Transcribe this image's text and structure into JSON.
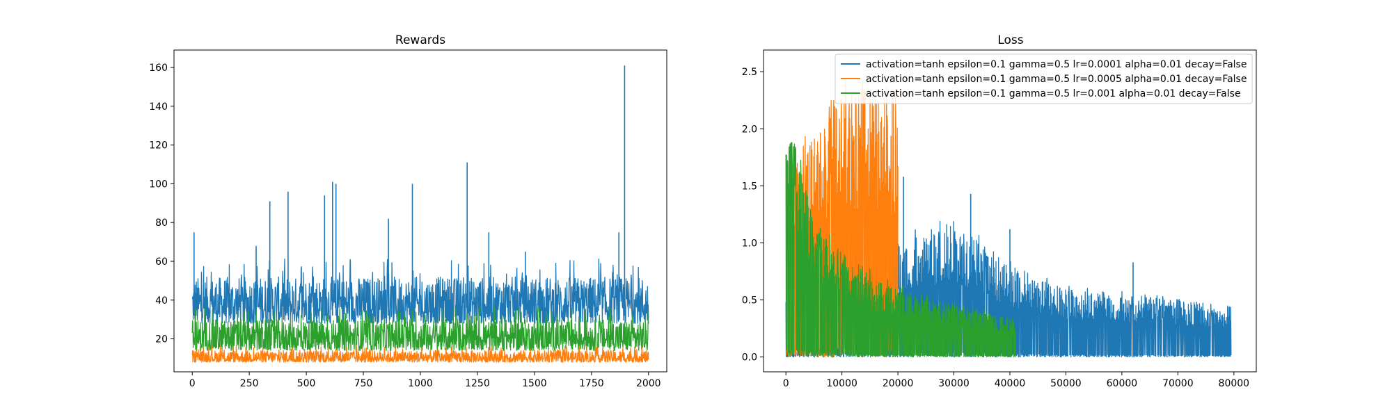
{
  "chart_data": [
    {
      "type": "line",
      "title": "Rewards",
      "xlabel": "",
      "ylabel": "",
      "xlim": [
        -80,
        2080
      ],
      "ylim": [
        3,
        169
      ],
      "xticks": [
        0,
        250,
        500,
        750,
        1000,
        1250,
        1500,
        1750,
        2000
      ],
      "yticks": [
        20,
        40,
        60,
        80,
        100,
        120,
        140,
        160
      ],
      "xtick_labels": [
        "0",
        "250",
        "500",
        "750",
        "1000",
        "1250",
        "1500",
        "1750",
        "2000"
      ],
      "ytick_labels": [
        "20",
        "40",
        "60",
        "80",
        "100",
        "120",
        "140",
        "160"
      ],
      "grid": false,
      "series": [
        {
          "color": "#1f77b4",
          "x_range": [
            0,
            2000
          ],
          "base": [
            28,
            52
          ],
          "spikes": [
            [
              8,
              75
            ],
            [
              280,
              68
            ],
            [
              340,
              91
            ],
            [
              420,
              96
            ],
            [
              580,
              94
            ],
            [
              615,
              101
            ],
            [
              630,
              100
            ],
            [
              860,
              82
            ],
            [
              965,
              100
            ],
            [
              1205,
              111
            ],
            [
              1300,
              75
            ],
            [
              1460,
              65
            ],
            [
              1870,
              75
            ],
            [
              1895,
              161
            ]
          ]
        },
        {
          "color": "#2ca02c",
          "x_range": [
            0,
            2000
          ],
          "base": [
            14,
            30
          ]
        },
        {
          "color": "#ff7f0e",
          "x_range": [
            0,
            2000
          ],
          "base": [
            8,
            14
          ]
        }
      ]
    },
    {
      "type": "line",
      "title": "Loss",
      "xlabel": "",
      "ylabel": "",
      "xlim": [
        -4000,
        84000
      ],
      "ylim": [
        -0.13,
        2.69
      ],
      "xticks": [
        0,
        10000,
        20000,
        30000,
        40000,
        50000,
        60000,
        70000,
        80000
      ],
      "yticks": [
        0.0,
        0.5,
        1.0,
        1.5,
        2.0,
        2.5
      ],
      "xtick_labels": [
        "0",
        "10000",
        "20000",
        "30000",
        "40000",
        "50000",
        "60000",
        "70000",
        "80000"
      ],
      "ytick_labels": [
        "0.0",
        "0.5",
        "1.0",
        "1.5",
        "2.0",
        "2.5"
      ],
      "grid": false,
      "legend_position": "top-right",
      "series": [
        {
          "name": "activation=tanh epsilon=0.1 gamma=0.5 lr=0.0001 alpha=0.01 decay=False",
          "color": "#1f77b4",
          "x_range": [
            0,
            79500
          ],
          "envelope": [
            [
              0,
              0.5
            ],
            [
              20000,
              1.0
            ],
            [
              30000,
              1.2
            ],
            [
              40000,
              0.8
            ],
            [
              50000,
              0.6
            ],
            [
              60000,
              0.55
            ],
            [
              70000,
              0.5
            ],
            [
              79500,
              0.45
            ]
          ],
          "spikes": [
            [
              21000,
              1.58
            ],
            [
              33000,
              1.43
            ],
            [
              40000,
              1.12
            ],
            [
              62000,
              0.83
            ]
          ]
        },
        {
          "name": "activation=tanh epsilon=0.1 gamma=0.5 lr=0.0005 alpha=0.01 decay=False",
          "color": "#ff7f0e",
          "x_range": [
            0,
            20000
          ],
          "envelope": [
            [
              0,
              1.6
            ],
            [
              5000,
              1.95
            ],
            [
              10000,
              2.3
            ],
            [
              15000,
              2.35
            ],
            [
              20000,
              2.2
            ]
          ]
        },
        {
          "name": "activation=tanh epsilon=0.1 gamma=0.5 lr=0.001 alpha=0.01 decay=False",
          "color": "#2ca02c",
          "x_range": [
            0,
            41000
          ],
          "envelope": [
            [
              0,
              1.9
            ],
            [
              2000,
              1.8
            ],
            [
              5000,
              1.2
            ],
            [
              10000,
              0.9
            ],
            [
              20000,
              0.6
            ],
            [
              30000,
              0.45
            ],
            [
              41000,
              0.35
            ]
          ]
        }
      ]
    }
  ]
}
